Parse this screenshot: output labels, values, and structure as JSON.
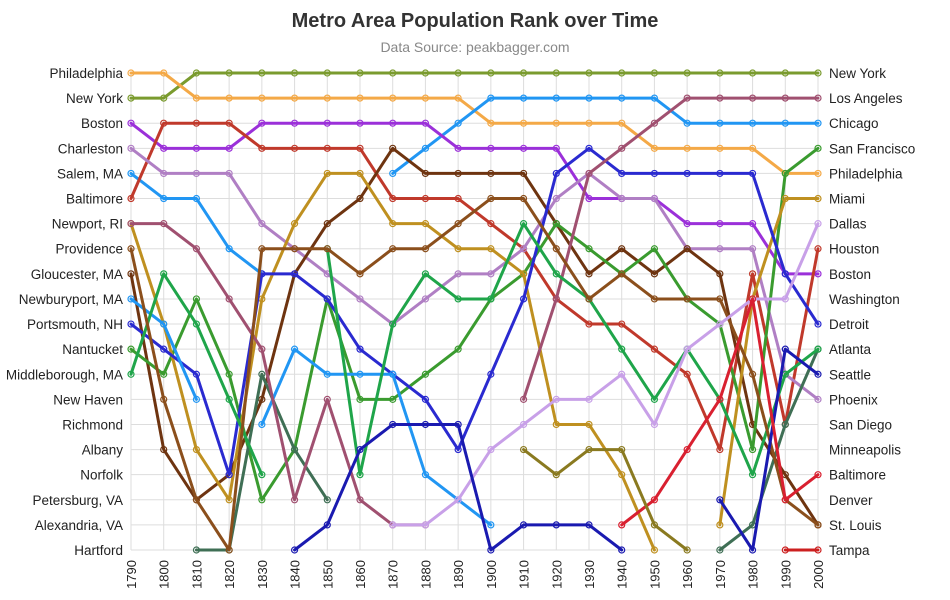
{
  "chart_data": {
    "type": "line",
    "title": "Metro Area Population Rank over Time",
    "subtitle": "Data Source: peakbagger.com",
    "years": [
      1790,
      1800,
      1810,
      1820,
      1830,
      1840,
      1850,
      1860,
      1870,
      1880,
      1890,
      1900,
      1910,
      1920,
      1930,
      1940,
      1950,
      1960,
      1970,
      1980,
      1990,
      2000
    ],
    "rank_range": [
      1,
      20
    ],
    "grid": true,
    "left_labels": [
      "Philadelphia",
      "New York",
      "Boston",
      "Charleston",
      "Salem, MA",
      "Baltimore",
      "Newport, RI",
      "Providence",
      "Gloucester, MA",
      "Newburyport, MA",
      "Portsmouth, NH",
      "Nantucket",
      "Middleborough, MA",
      "New Haven",
      "Richmond",
      "Albany",
      "Norfolk",
      "Petersburg, VA",
      "Alexandria, VA",
      "Hartford"
    ],
    "right_labels": [
      "New York",
      "Los Angeles",
      "Chicago",
      "San Francisco",
      "Philadelphia",
      "Miami",
      "Dallas",
      "Houston",
      "Boston",
      "Washington",
      "Detroit",
      "Atlanta",
      "Seattle",
      "Phoenix",
      "San Diego",
      "Minneapolis",
      "Baltimore",
      "Denver",
      "St. Louis",
      "Tampa"
    ],
    "series": [
      {
        "color": "#7a9b2e",
        "ranks": [
          2,
          2,
          1,
          1,
          1,
          1,
          1,
          1,
          1,
          1,
          1,
          1,
          1,
          1,
          1,
          1,
          1,
          1,
          1,
          1,
          1,
          1
        ]
      },
      {
        "color": "#f4a947",
        "ranks": [
          1,
          1,
          2,
          2,
          2,
          2,
          2,
          2,
          2,
          2,
          2,
          3,
          3,
          3,
          3,
          3,
          4,
          4,
          4,
          4,
          5,
          5
        ]
      },
      {
        "color": "#2196f3",
        "ranks": [
          5,
          6,
          6,
          8,
          9,
          null,
          null,
          null,
          5,
          4,
          3,
          2,
          2,
          2,
          2,
          2,
          2,
          3,
          3,
          3,
          3,
          3
        ]
      },
      {
        "color": "#9b30d9",
        "ranks": [
          3,
          4,
          4,
          4,
          3,
          3,
          3,
          3,
          3,
          3,
          4,
          4,
          4,
          4,
          6,
          6,
          6,
          7,
          7,
          7,
          9,
          9
        ]
      },
      {
        "color": "#c0392b",
        "ranks": [
          6,
          3,
          3,
          3,
          4,
          4,
          4,
          4,
          6,
          6,
          6,
          7,
          8,
          10,
          11,
          11,
          12,
          13,
          16,
          9,
          15,
          8
        ]
      },
      {
        "color": "#b07fc4",
        "ranks": [
          4,
          5,
          5,
          5,
          7,
          8,
          9,
          10,
          11,
          10,
          9,
          9,
          8,
          6,
          5,
          6,
          6,
          8,
          8,
          8,
          13,
          14
        ]
      },
      {
        "color": "#6e3410",
        "ranks": [
          9,
          16,
          18,
          17,
          14,
          9,
          7,
          6,
          4,
          5,
          5,
          5,
          5,
          7,
          9,
          8,
          9,
          8,
          9,
          15,
          17,
          19
        ]
      },
      {
        "color": "#3a9b2f",
        "ranks": [
          12,
          13,
          10,
          13,
          18,
          16,
          10,
          14,
          14,
          13,
          12,
          10,
          9,
          7,
          8,
          9,
          8,
          10,
          11,
          16,
          5,
          4
        ]
      },
      {
        "color": "#bf9020",
        "ranks": [
          7,
          11,
          16,
          18,
          10,
          7,
          5,
          5,
          7,
          7,
          8,
          8,
          9,
          15,
          15,
          17,
          20,
          null,
          19,
          10,
          6,
          6
        ]
      },
      {
        "color": "#2a2ad0",
        "ranks": [
          11,
          12,
          13,
          17,
          9,
          9,
          10,
          12,
          13,
          14,
          16,
          13,
          10,
          5,
          4,
          5,
          5,
          5,
          5,
          5,
          9,
          11
        ]
      },
      {
        "color": "#3f6f55",
        "ranks": [
          null,
          null,
          20,
          20,
          13,
          16,
          18,
          null,
          null,
          null,
          null,
          null,
          null,
          null,
          null,
          null,
          null,
          null,
          20,
          19,
          15,
          12
        ]
      },
      {
        "color": "#2196f3",
        "ranks": [
          10,
          11,
          14,
          null,
          15,
          12,
          13,
          13,
          13,
          17,
          18,
          19,
          null,
          null,
          null,
          null,
          null,
          null,
          null,
          null,
          null,
          null
        ]
      },
      {
        "color": "#a05070",
        "ranks": [
          7,
          7,
          8,
          10,
          12,
          18,
          14,
          18,
          19,
          19,
          null,
          null,
          14,
          10,
          5,
          4,
          3,
          2,
          2,
          2,
          2,
          2
        ]
      },
      {
        "color": "#1fa54a",
        "ranks": [
          13,
          9,
          11,
          14,
          17,
          null,
          8,
          17,
          11,
          9,
          10,
          10,
          7,
          9,
          10,
          12,
          14,
          12,
          14,
          17,
          13,
          12
        ]
      },
      {
        "color": "#8b4f1c",
        "ranks": [
          8,
          14,
          18,
          20,
          8,
          8,
          8,
          9,
          8,
          8,
          7,
          6,
          6,
          8,
          10,
          9,
          10,
          10,
          10,
          13,
          18,
          19
        ]
      },
      {
        "color": "#c8a0e8",
        "ranks": [
          null,
          null,
          null,
          null,
          null,
          null,
          null,
          null,
          19,
          19,
          18,
          16,
          15,
          14,
          14,
          13,
          15,
          12,
          11,
          10,
          10,
          7
        ]
      },
      {
        "color": "#1a1ab0",
        "ranks": [
          null,
          null,
          null,
          null,
          null,
          20,
          19,
          16,
          15,
          15,
          15,
          20,
          19,
          19,
          19,
          20,
          null,
          null,
          18,
          20,
          12,
          13
        ]
      },
      {
        "color": "#d92030",
        "ranks": [
          null,
          null,
          null,
          null,
          null,
          null,
          null,
          null,
          null,
          null,
          null,
          null,
          null,
          null,
          null,
          19,
          18,
          16,
          14,
          10,
          18,
          17
        ]
      },
      {
        "color": "#cc2020",
        "ranks": [
          null,
          null,
          null,
          null,
          null,
          null,
          null,
          null,
          null,
          null,
          null,
          null,
          null,
          null,
          null,
          null,
          null,
          null,
          null,
          null,
          20,
          20
        ]
      },
      {
        "color": "#8a7a20",
        "ranks": [
          null,
          null,
          null,
          null,
          null,
          null,
          null,
          null,
          null,
          null,
          null,
          null,
          16,
          17,
          16,
          16,
          19,
          20,
          null,
          null,
          null,
          null
        ]
      }
    ]
  }
}
